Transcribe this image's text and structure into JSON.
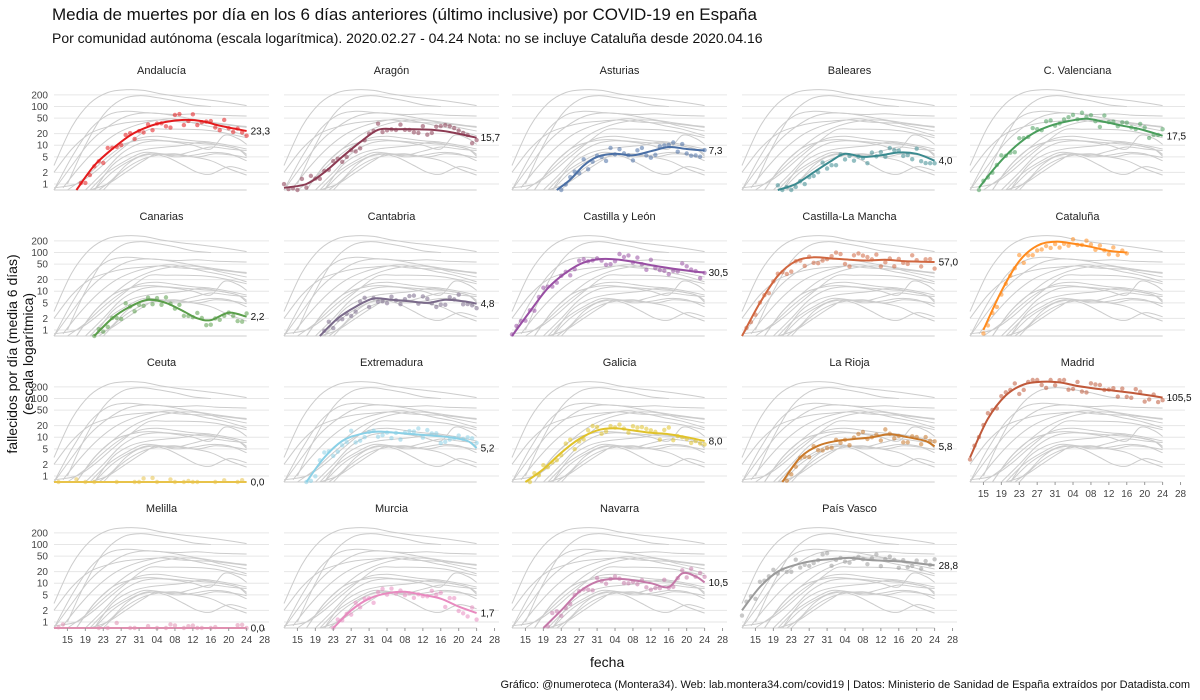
{
  "header": {
    "title": "Media de muertes por día en los 6 días anteriores (último inclusive) por COVID-19 en España",
    "subtitle": "Por comunidad autónoma (escala logarítmica). 2020.02.27 - 04.24 Nota: no se incluye Cataluña desde 2020.04.16"
  },
  "caption": "Gráfico: @numeroteca (Montera34). Web: lab.montera34.com/covid19 | Datos: Ministerio de Sanidad de España extraídos por Datadista.com",
  "chart_data": {
    "type": "line",
    "xlabel": "fecha",
    "ylabel": "fallecidos por día (media 6 días) (escala logarítmica)",
    "y_scale": "log",
    "ylim": [
      0.7,
      300
    ],
    "y_ticks": [
      1,
      2,
      5,
      10,
      20,
      50,
      100,
      200
    ],
    "y_tick_labels": [
      "1",
      "2",
      "5",
      "10",
      "20",
      "50",
      "100",
      "200"
    ],
    "x_tick_labels": [
      "15",
      "19",
      "23",
      "27",
      "31",
      "04",
      "08",
      "12",
      "16",
      "20",
      "24",
      "28"
    ],
    "x_tick_days": [
      0,
      4,
      8,
      12,
      16,
      20,
      24,
      28,
      32,
      36,
      40,
      44
    ],
    "x_domain_days": [
      -3,
      45
    ],
    "grid": true,
    "background_color": "#cccccc",
    "series": [
      {
        "name": "Andalucía",
        "color": "#e41a1c",
        "end_label": "23,3",
        "x": [
          2,
          6,
          10,
          14,
          18,
          22,
          26,
          30,
          34,
          40
        ],
        "y": [
          0.7,
          3,
          8,
          18,
          30,
          40,
          45,
          42,
          32,
          23.3
        ]
      },
      {
        "name": "Aragón",
        "color": "#8b3a52",
        "end_label": "15,7",
        "x": [
          -3,
          2,
          6,
          10,
          14,
          18,
          22,
          26,
          30,
          34,
          40
        ],
        "y": [
          0.8,
          1,
          2,
          5,
          12,
          25,
          26,
          26,
          25,
          22,
          15.7
        ]
      },
      {
        "name": "Asturias",
        "color": "#4a6fa5",
        "end_label": "7,3",
        "x": [
          7,
          10,
          13,
          16,
          20,
          24,
          28,
          32,
          36,
          40
        ],
        "y": [
          0.7,
          1.3,
          3,
          5,
          6,
          5.5,
          7,
          9,
          8,
          7.3
        ]
      },
      {
        "name": "Baleares",
        "color": "#3a8a8f",
        "end_label": "4,0",
        "x": [
          5,
          9,
          13,
          17,
          20,
          24,
          28,
          32,
          36,
          40
        ],
        "y": [
          0.7,
          1,
          2,
          4,
          6,
          5,
          5.5,
          6.5,
          6,
          4
        ]
      },
      {
        "name": "C. Valenciana",
        "color": "#4a9e5c",
        "end_label": "17,5",
        "x": [
          -1,
          3,
          7,
          11,
          15,
          19,
          23,
          27,
          31,
          35,
          40
        ],
        "y": [
          0.8,
          3,
          9,
          20,
          32,
          42,
          48,
          40,
          32,
          26,
          17.5
        ]
      },
      {
        "name": "Canarias",
        "color": "#5a9e4a",
        "end_label": "2,2",
        "x": [
          6,
          10,
          14,
          18,
          22,
          26,
          29,
          32,
          36,
          40
        ],
        "y": [
          0.7,
          2,
          4,
          6,
          5,
          3,
          2,
          1.8,
          2.8,
          2.2
        ]
      },
      {
        "name": "Cantabria",
        "color": "#7a6a8a",
        "end_label": "4,8",
        "x": [
          5,
          9,
          13,
          17,
          21,
          25,
          29,
          33,
          37,
          40
        ],
        "y": [
          0.7,
          2,
          4,
          6.5,
          6,
          5.5,
          5,
          6,
          5.5,
          4.8
        ]
      },
      {
        "name": "Castilla y León",
        "color": "#984ea3",
        "end_label": "30,5",
        "x": [
          -3,
          1,
          5,
          9,
          13,
          17,
          21,
          25,
          29,
          33,
          37,
          40
        ],
        "y": [
          0.7,
          3,
          12,
          30,
          55,
          68,
          65,
          55,
          45,
          38,
          33,
          30.5
        ]
      },
      {
        "name": "Castilla-La Mancha",
        "color": "#d0663f",
        "end_label": "57,0",
        "x": [
          -3,
          1,
          5,
          9,
          13,
          17,
          21,
          25,
          29,
          33,
          37,
          40
        ],
        "y": [
          0.7,
          5,
          25,
          60,
          75,
          70,
          65,
          62,
          65,
          60,
          58,
          57
        ]
      },
      {
        "name": "Cataluña",
        "color": "#ff8a1c",
        "end_label": "",
        "x": [
          0,
          4,
          8,
          12,
          16,
          20,
          24,
          28,
          32
        ],
        "y": [
          1,
          10,
          60,
          150,
          190,
          170,
          140,
          110,
          100
        ]
      },
      {
        "name": "Ceuta",
        "color": "#e8c34a",
        "end_label": "0,0",
        "x": [
          -3,
          10,
          20,
          30,
          40
        ],
        "y": [
          0.7,
          0.7,
          0.7,
          0.7,
          0.7
        ]
      },
      {
        "name": "Extremadura",
        "color": "#8ad0e6",
        "end_label": "5,2",
        "x": [
          2,
          6,
          10,
          14,
          18,
          22,
          26,
          30,
          34,
          38,
          40
        ],
        "y": [
          0.7,
          3,
          8,
          12,
          14,
          13,
          12,
          11,
          10,
          8,
          5.2
        ]
      },
      {
        "name": "Galicia",
        "color": "#e0c22a",
        "end_label": "8,0",
        "x": [
          0,
          4,
          8,
          12,
          16,
          20,
          24,
          28,
          32,
          36,
          40
        ],
        "y": [
          0.7,
          1.5,
          4,
          9,
          15,
          17,
          15,
          13,
          12,
          10,
          8
        ]
      },
      {
        "name": "La Rioja",
        "color": "#c9792a",
        "end_label": "5,8",
        "x": [
          6,
          10,
          14,
          18,
          22,
          26,
          30,
          34,
          38,
          40
        ],
        "y": [
          0.7,
          3,
          6,
          8,
          9,
          10,
          12,
          10,
          8,
          5.8
        ]
      },
      {
        "name": "Madrid",
        "color": "#c0593a",
        "end_label": "105,5",
        "x": [
          -3,
          1,
          5,
          9,
          13,
          17,
          21,
          25,
          29,
          33,
          37,
          40
        ],
        "y": [
          3,
          30,
          120,
          230,
          270,
          260,
          210,
          180,
          160,
          140,
          120,
          105.5
        ]
      },
      {
        "name": "Melilla",
        "color": "#e090b0",
        "end_label": "0,0",
        "x": [
          -3,
          10,
          20,
          30,
          40
        ],
        "y": [
          0.7,
          0.7,
          0.7,
          0.7,
          0.7
        ]
      },
      {
        "name": "Murcia",
        "color": "#e88abf",
        "end_label": "1,7",
        "x": [
          8,
          12,
          16,
          20,
          24,
          28,
          32,
          36,
          40
        ],
        "y": [
          0.7,
          2,
          4,
          5.5,
          6,
          5,
          4,
          2.5,
          1.7
        ]
      },
      {
        "name": "Navarra",
        "color": "#c478a8",
        "end_label": "10,5",
        "x": [
          4,
          8,
          12,
          16,
          20,
          24,
          28,
          32,
          35,
          38,
          40
        ],
        "y": [
          0.7,
          2,
          6,
          11,
          13,
          12,
          10,
          8,
          18,
          15,
          10.5
        ]
      },
      {
        "name": "País Vasco",
        "color": "#9a9a9a",
        "end_label": "28,8",
        "x": [
          -3,
          1,
          5,
          9,
          13,
          17,
          21,
          25,
          29,
          33,
          37,
          40
        ],
        "y": [
          2,
          8,
          20,
          30,
          38,
          42,
          45,
          40,
          38,
          36,
          32,
          28.8
        ]
      }
    ]
  }
}
